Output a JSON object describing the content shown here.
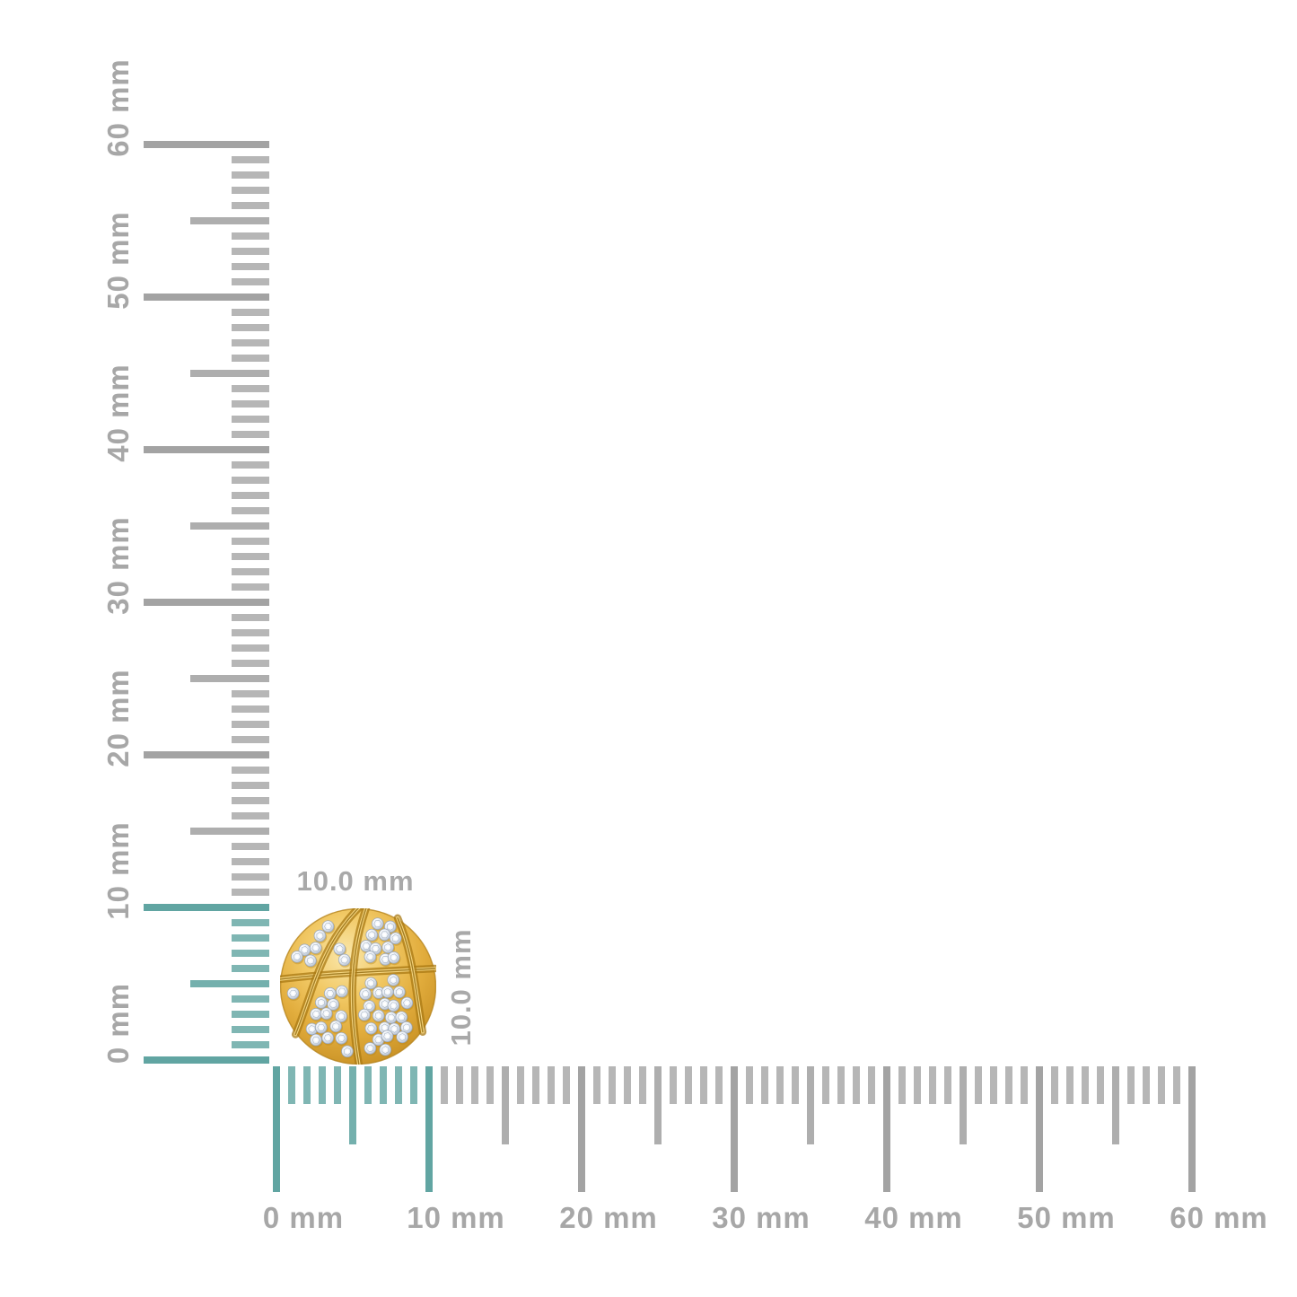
{
  "diagram": {
    "unit": "mm",
    "ruler_max_mm": 60,
    "minor_step_mm": 1,
    "mid_step_mm": 5,
    "major_step_mm": 10,
    "highlighted_span_mm": 10,
    "vertical_ruler": {
      "labels": [
        "0 mm",
        "10 mm",
        "20 mm",
        "30 mm",
        "40 mm",
        "50 mm",
        "60 mm"
      ]
    },
    "horizontal_ruler": {
      "labels": [
        "0 mm",
        "10 mm",
        "20 mm",
        "30 mm",
        "40 mm",
        "50 mm",
        "60 mm"
      ]
    },
    "colors": {
      "background": "#ffffff",
      "tick_minor_gray": "#b6b6b6",
      "tick_mid_gray": "#aeaeae",
      "tick_major_gray": "#a3a3a3",
      "tick_minor_teal": "#7fb6b3",
      "tick_mid_teal": "#74b0ad",
      "tick_major_teal": "#61a5a2",
      "label_gray": "#a7a7a7"
    }
  },
  "product": {
    "description": "Round yellow-gold basketball-shaped stud earring pave-set with round diamonds",
    "width_label": "10.0 mm",
    "height_label": "10.0 mm",
    "colors": {
      "gold_highlight": "#fae7ab",
      "gold": "#e2ad3d",
      "gold_shadow": "#c28a1f",
      "seam_dark": "#a97a14",
      "seam_light": "#f4d47e",
      "diamond_light": "#ffffff",
      "diamond_dark": "#b7c2d2",
      "dimension_label_gray": "#a9a9a9"
    }
  }
}
